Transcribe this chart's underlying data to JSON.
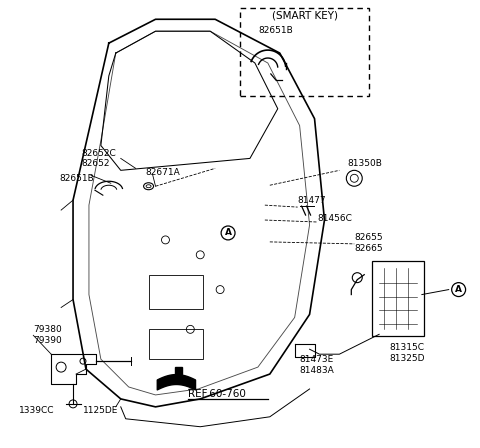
{
  "background_color": "#ffffff",
  "fig_width": 4.8,
  "fig_height": 4.48,
  "dpi": 100,
  "labels": {
    "smart_key_box": "(SMART KEY)",
    "82651B_smart": "82651B",
    "82652C": "82652C",
    "82652": "82652",
    "82651B": "82651B",
    "82671A": "82671A",
    "81350B": "81350B",
    "81477": "81477",
    "81456C": "81456C",
    "82655": "82655",
    "82665": "82665",
    "81315C": "81315C",
    "81325D": "81325D",
    "81473E": "81473E",
    "81483A": "81483A",
    "79380": "79380",
    "79390": "79390",
    "1339CC": "1339CC",
    "1125DE": "1125DE",
    "ref": "REF.60-760",
    "circleA": "A"
  },
  "font_size_label": 6.5,
  "line_color": "#000000"
}
